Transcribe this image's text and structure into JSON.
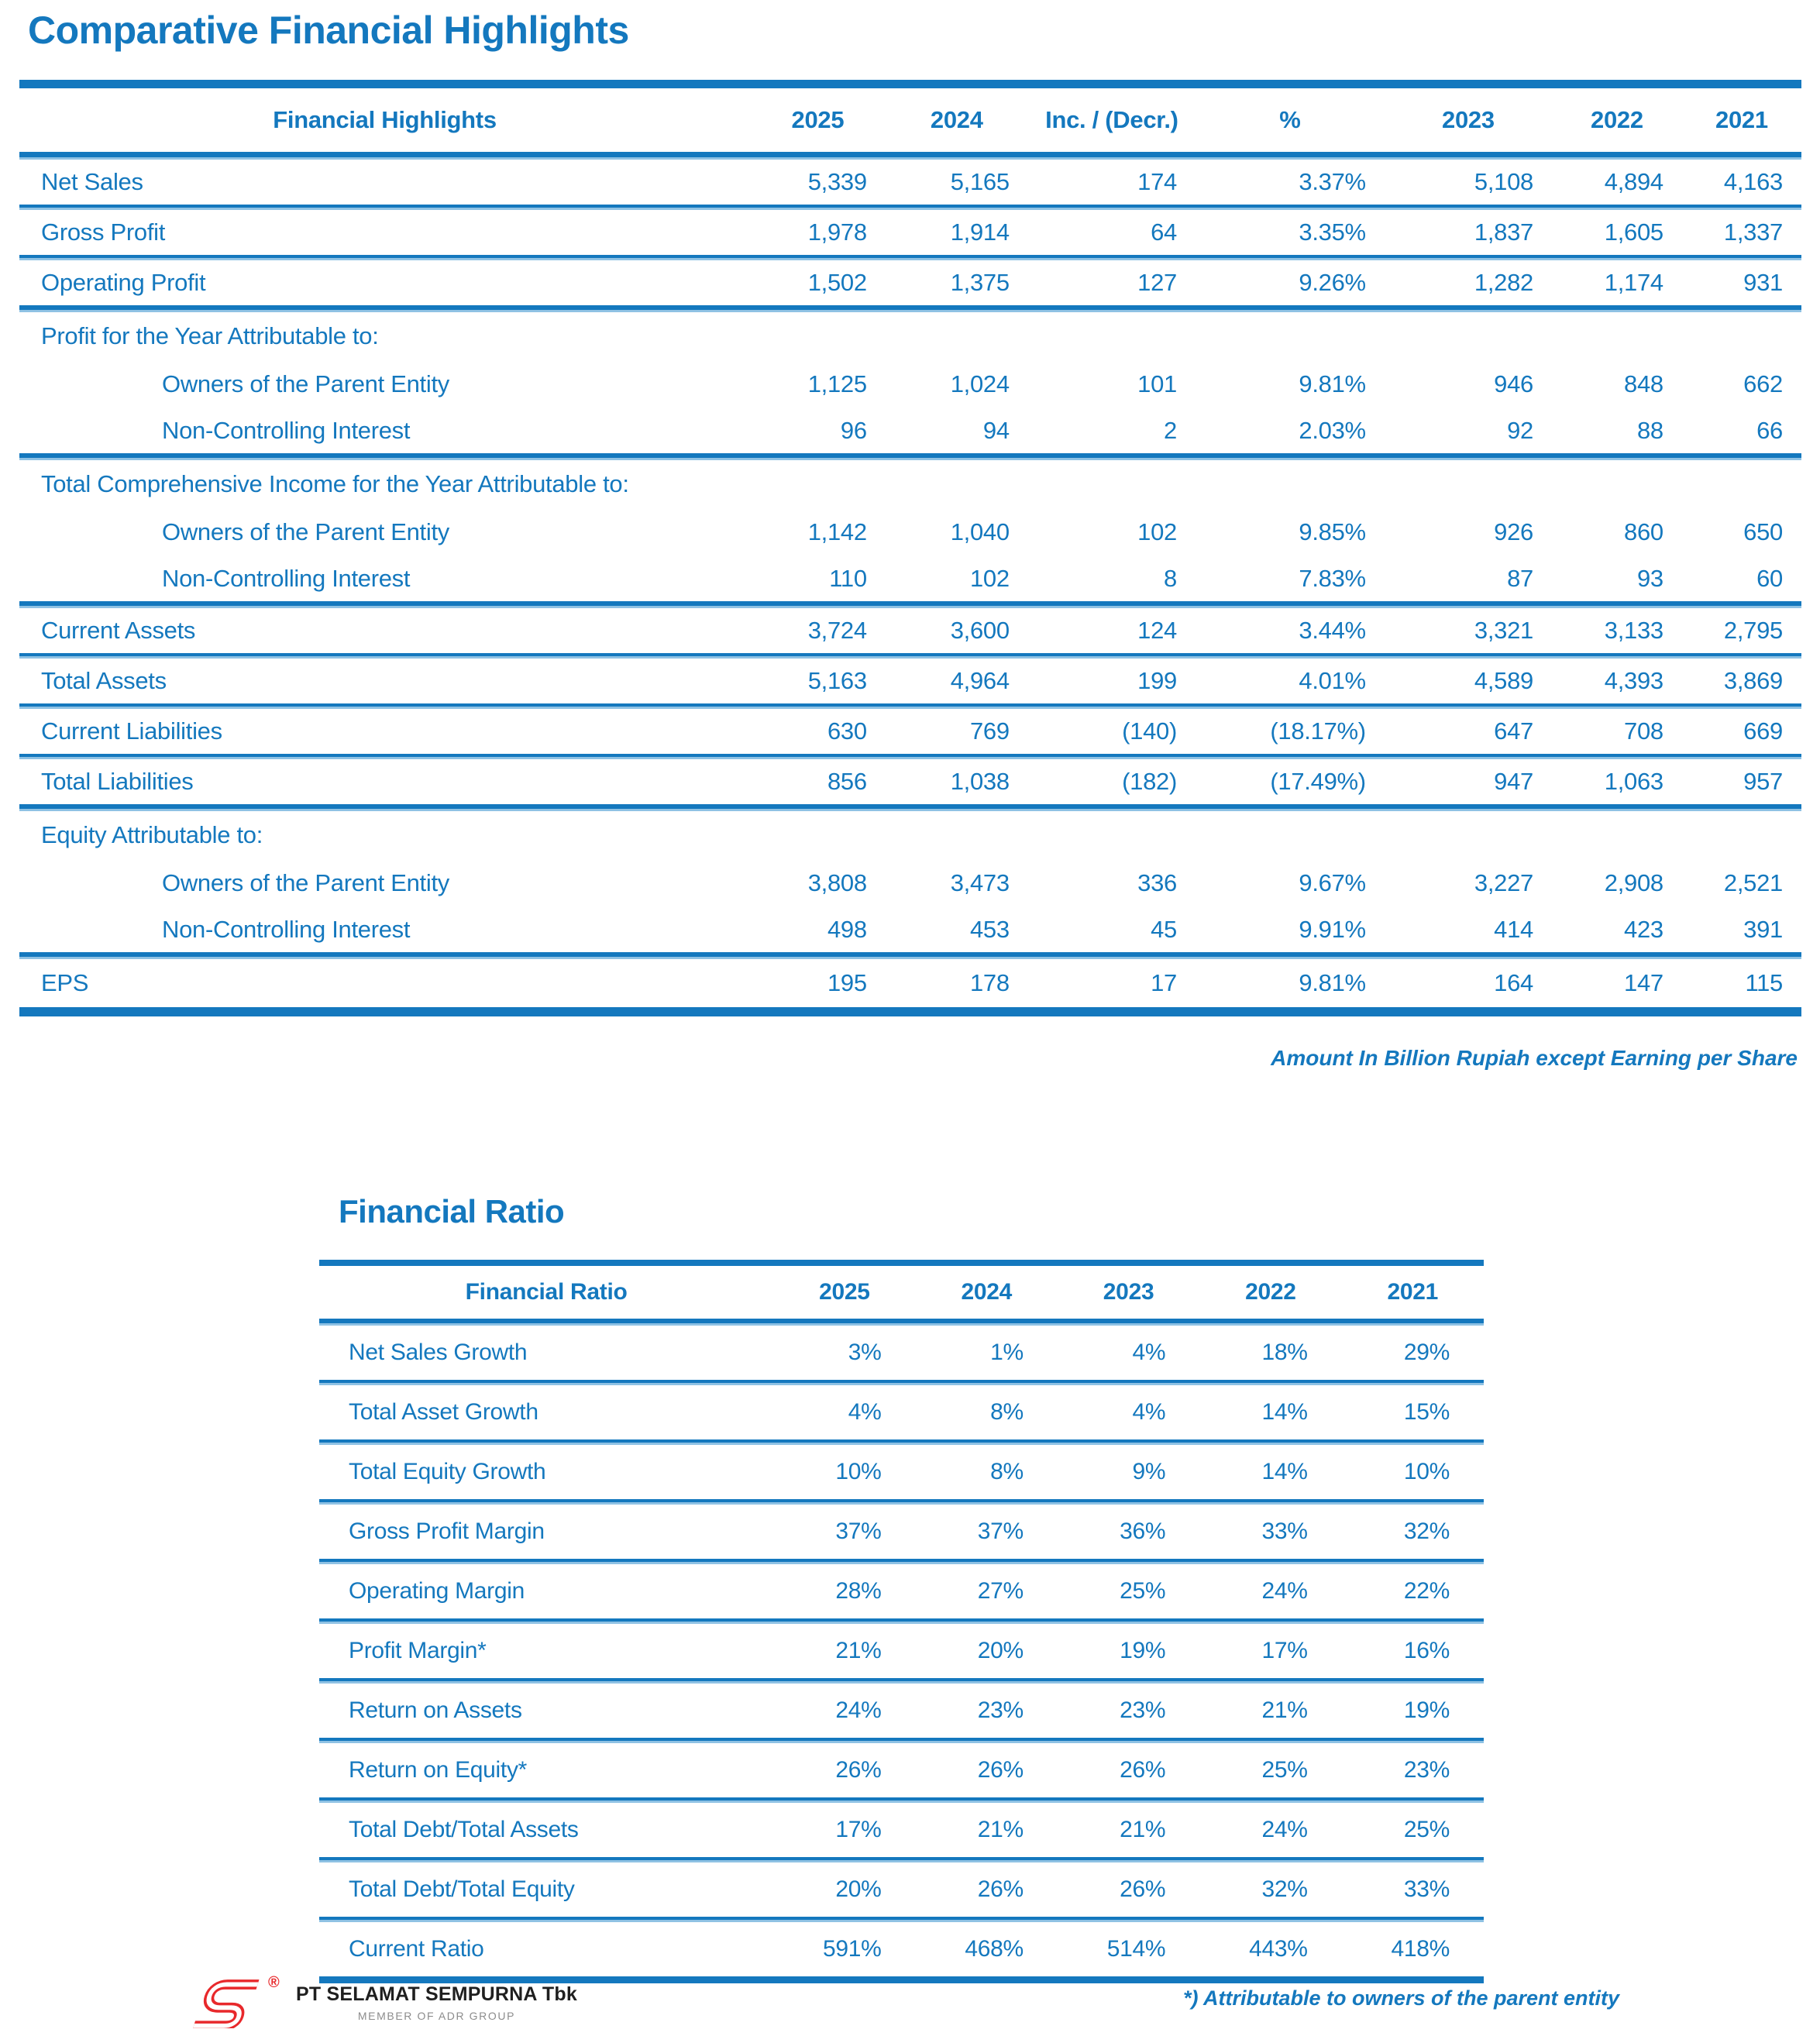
{
  "page": {
    "title": "Comparative Financial Highlights",
    "units_note": "Amount In Billion Rupiah except Earning per Share",
    "footnote": "*) Attributable to owners of the parent entity"
  },
  "highlights_table": {
    "columns": [
      "Financial Highlights",
      "2025",
      "2024",
      "Inc. / (Decr.)",
      "%",
      "2023",
      "2022",
      "2021"
    ],
    "rows": [
      {
        "label": "Net Sales",
        "values": [
          "5,339",
          "5,165",
          "174",
          "3.37%",
          "5,108",
          "4,894",
          "4,163"
        ],
        "sep": "thin"
      },
      {
        "label": "Gross Profit",
        "values": [
          "1,978",
          "1,914",
          "64",
          "3.35%",
          "1,837",
          "1,605",
          "1,337"
        ],
        "sep": "thin"
      },
      {
        "label": "Operating Profit",
        "values": [
          "1,502",
          "1,375",
          "127",
          "9.26%",
          "1,282",
          "1,174",
          "931"
        ],
        "sep": "thick"
      },
      {
        "label": "Profit for the Year Attributable to:",
        "group": true,
        "values": [],
        "sep": "none"
      },
      {
        "label": "Owners of the Parent Entity",
        "indent": true,
        "values": [
          "1,125",
          "1,024",
          "101",
          "9.81%",
          "946",
          "848",
          "662"
        ],
        "sep": "none"
      },
      {
        "label": "Non-Controlling Interest",
        "indent": true,
        "values": [
          "96",
          "94",
          "2",
          "2.03%",
          "92",
          "88",
          "66"
        ],
        "sep": "thick"
      },
      {
        "label": "Total Comprehensive Income for the Year Attributable to:",
        "group": true,
        "values": [],
        "sep": "none"
      },
      {
        "label": "Owners of the Parent Entity",
        "indent": true,
        "values": [
          "1,142",
          "1,040",
          "102",
          "9.85%",
          "926",
          "860",
          "650"
        ],
        "sep": "none"
      },
      {
        "label": "Non-Controlling Interest",
        "indent": true,
        "values": [
          "110",
          "102",
          "8",
          "7.83%",
          "87",
          "93",
          "60"
        ],
        "sep": "thick"
      },
      {
        "label": "Current Assets",
        "values": [
          "3,724",
          "3,600",
          "124",
          "3.44%",
          "3,321",
          "3,133",
          "2,795"
        ],
        "sep": "thin"
      },
      {
        "label": "Total Assets",
        "values": [
          "5,163",
          "4,964",
          "199",
          "4.01%",
          "4,589",
          "4,393",
          "3,869"
        ],
        "sep": "thin"
      },
      {
        "label": "Current Liabilities",
        "values": [
          "630",
          "769",
          "(140)",
          "(18.17%)",
          "647",
          "708",
          "669"
        ],
        "sep": "thin"
      },
      {
        "label": "Total Liabilities",
        "values": [
          "856",
          "1,038",
          "(182)",
          "(17.49%)",
          "947",
          "1,063",
          "957"
        ],
        "sep": "thick"
      },
      {
        "label": "Equity Attributable to:",
        "group": true,
        "values": [],
        "sep": "none"
      },
      {
        "label": "Owners of the Parent Entity",
        "indent": true,
        "values": [
          "3,808",
          "3,473",
          "336",
          "9.67%",
          "3,227",
          "2,908",
          "2,521"
        ],
        "sep": "none"
      },
      {
        "label": "Non-Controlling Interest",
        "indent": true,
        "values": [
          "498",
          "453",
          "45",
          "9.91%",
          "414",
          "423",
          "391"
        ],
        "sep": "thick"
      },
      {
        "label": "EPS",
        "values": [
          "195",
          "178",
          "17",
          "9.81%",
          "164",
          "147",
          "115"
        ],
        "sep": "none"
      }
    ]
  },
  "ratio_table": {
    "title": "Financial Ratio",
    "columns": [
      "Financial Ratio",
      "2025",
      "2024",
      "2023",
      "2022",
      "2021"
    ],
    "rows": [
      {
        "label": "Net Sales Growth",
        "values": [
          "3%",
          "1%",
          "4%",
          "18%",
          "29%"
        ],
        "sep": "thin"
      },
      {
        "label": "Total Asset Growth",
        "values": [
          "4%",
          "8%",
          "4%",
          "14%",
          "15%"
        ],
        "sep": "thin"
      },
      {
        "label": "Total Equity Growth",
        "values": [
          "10%",
          "8%",
          "9%",
          "14%",
          "10%"
        ],
        "sep": "thin"
      },
      {
        "label": "Gross Profit Margin",
        "values": [
          "37%",
          "37%",
          "36%",
          "33%",
          "32%"
        ],
        "sep": "thin"
      },
      {
        "label": "Operating Margin",
        "values": [
          "28%",
          "27%",
          "25%",
          "24%",
          "22%"
        ],
        "sep": "thin"
      },
      {
        "label": "Profit Margin*",
        "values": [
          "21%",
          "20%",
          "19%",
          "17%",
          "16%"
        ],
        "sep": "thin"
      },
      {
        "label": "Return on Assets",
        "values": [
          "24%",
          "23%",
          "23%",
          "21%",
          "19%"
        ],
        "sep": "thin"
      },
      {
        "label": "Return on Equity*",
        "values": [
          "26%",
          "26%",
          "26%",
          "25%",
          "23%"
        ],
        "sep": "thin"
      },
      {
        "label": "Total Debt/Total Assets",
        "values": [
          "17%",
          "21%",
          "21%",
          "24%",
          "25%"
        ],
        "sep": "thin"
      },
      {
        "label": "Total Debt/Total Equity",
        "values": [
          "20%",
          "26%",
          "26%",
          "32%",
          "33%"
        ],
        "sep": "thin"
      },
      {
        "label": "Current Ratio",
        "values": [
          "591%",
          "468%",
          "514%",
          "443%",
          "418%"
        ],
        "sep": "none"
      }
    ]
  },
  "footer": {
    "company": "PT SELAMAT SEMPURNA Tbk",
    "subtitle": "MEMBER OF ADR GROUP",
    "logo": "selamat-sempurna-logo",
    "registered_mark": "®"
  },
  "colors": {
    "accent": "#1478BE",
    "separator_light": "#8FC2E4",
    "logo_red": "#E8282B",
    "company_text": "#1f1f1f",
    "subtitle_gray": "#8C8C8C"
  }
}
